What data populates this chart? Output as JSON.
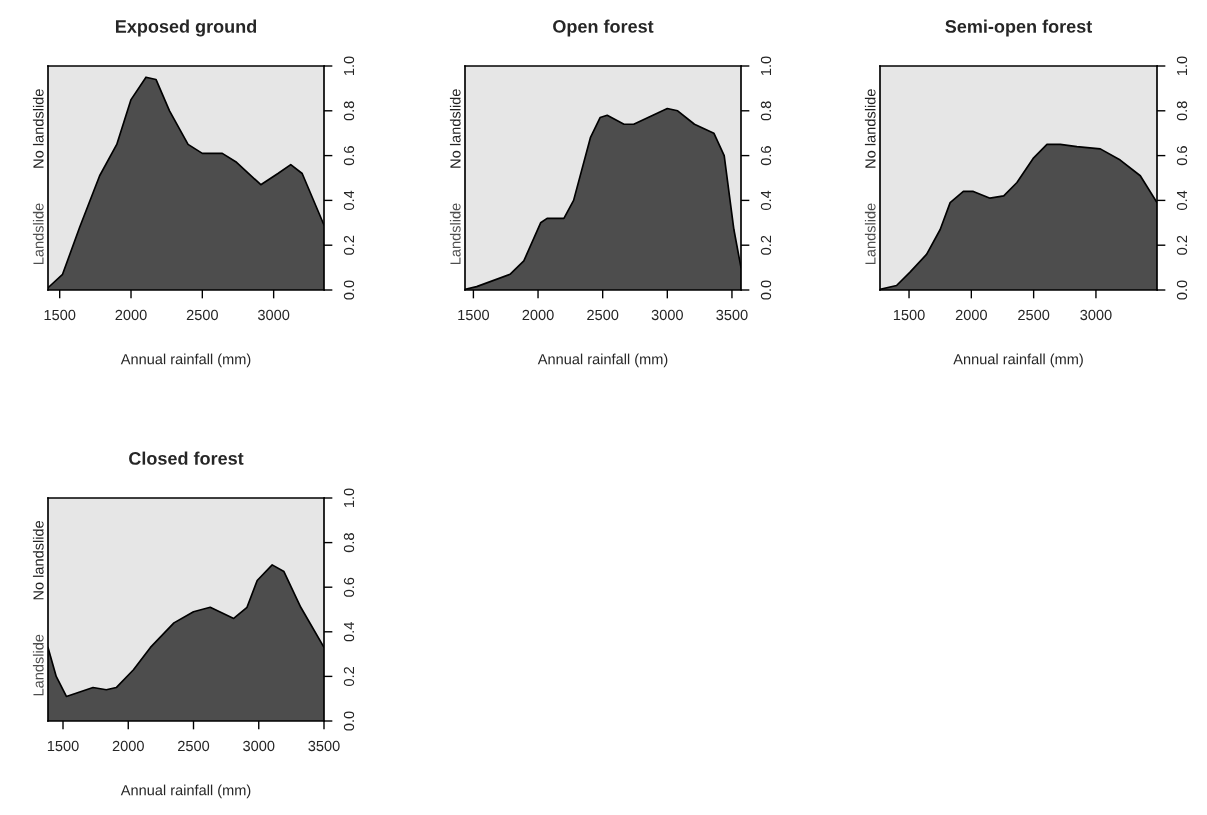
{
  "chart_data": [
    {
      "type": "area",
      "title": "Exposed ground",
      "xlabel": "Annual rainfall (mm)",
      "xlim": [
        1418,
        3353
      ],
      "xticks": [
        1500,
        2000,
        2500,
        3000
      ],
      "ylim": [
        0,
        1
      ],
      "yticks": [
        {
          "value": 0,
          "label": "0.0"
        },
        {
          "value": 0.2,
          "label": "0.2"
        },
        {
          "value": 0.4,
          "label": "0.4"
        },
        {
          "value": 0.6,
          "label": "0.6"
        },
        {
          "value": 0.8,
          "label": "0.8"
        },
        {
          "value": 1,
          "label": "1.0"
        }
      ],
      "bands": [
        {
          "axis": "y",
          "from": 0,
          "to": 1,
          "label": "No landslide",
          "color": "#e6e6e6"
        }
      ],
      "x": [
        1418,
        1520,
        1640,
        1780,
        1900,
        2000,
        2105,
        2175,
        2270,
        2400,
        2500,
        2640,
        2740,
        2910,
        3030,
        3120,
        3200,
        3353
      ],
      "series": [
        {
          "name": "Landslide",
          "color": "#4d4d4d",
          "values": [
            0.01,
            0.07,
            0.28,
            0.51,
            0.65,
            0.85,
            0.95,
            0.94,
            0.8,
            0.65,
            0.61,
            0.61,
            0.57,
            0.47,
            0.52,
            0.56,
            0.52,
            0.29
          ]
        }
      ]
    },
    {
      "type": "area",
      "title": "Open forest",
      "xlabel": "Annual rainfall (mm)",
      "xlim": [
        1435,
        3570
      ],
      "xticks": [
        1500,
        2000,
        2500,
        3000,
        3500
      ],
      "ylim": [
        0,
        1
      ],
      "yticks": [
        {
          "value": 0,
          "label": "0.0"
        },
        {
          "value": 0.2,
          "label": "0.2"
        },
        {
          "value": 0.4,
          "label": "0.4"
        },
        {
          "value": 0.6,
          "label": "0.6"
        },
        {
          "value": 0.8,
          "label": "0.8"
        },
        {
          "value": 1,
          "label": "1.0"
        }
      ],
      "bands": [
        {
          "axis": "y",
          "from": 0,
          "to": 1,
          "label": "No landslide",
          "color": "#e6e6e6"
        }
      ],
      "x": [
        1435,
        1525,
        1783,
        1890,
        2020,
        2070,
        2200,
        2275,
        2405,
        2480,
        2535,
        2665,
        2740,
        3000,
        3080,
        3210,
        3360,
        3440,
        3515,
        3570
      ],
      "series": [
        {
          "name": "Landslide",
          "color": "#4d4d4d",
          "values": [
            0.003,
            0.015,
            0.07,
            0.13,
            0.3,
            0.32,
            0.32,
            0.4,
            0.68,
            0.77,
            0.78,
            0.74,
            0.74,
            0.81,
            0.8,
            0.74,
            0.7,
            0.6,
            0.27,
            0.1
          ]
        }
      ]
    },
    {
      "type": "area",
      "title": "Semi-open forest",
      "xlabel": "Annual rainfall (mm)",
      "xlim": [
        1267,
        3490
      ],
      "xticks": [
        1500,
        2000,
        2500,
        3000
      ],
      "ylim": [
        0,
        1
      ],
      "yticks": [
        {
          "value": 0,
          "label": "0.0"
        },
        {
          "value": 0.2,
          "label": "0.2"
        },
        {
          "value": 0.4,
          "label": "0.4"
        },
        {
          "value": 0.6,
          "label": "0.6"
        },
        {
          "value": 0.8,
          "label": "0.8"
        },
        {
          "value": 1,
          "label": "1.0"
        }
      ],
      "bands": [
        {
          "axis": "y",
          "from": 0,
          "to": 1,
          "label": "No landslide",
          "color": "#e6e6e6"
        }
      ],
      "x": [
        1267,
        1400,
        1508,
        1642,
        1750,
        1830,
        1936,
        2016,
        2150,
        2260,
        2366,
        2500,
        2607,
        2714,
        2847,
        3035,
        3195,
        3356,
        3490
      ],
      "series": [
        {
          "name": "Landslide",
          "color": "#4d4d4d",
          "values": [
            0.003,
            0.02,
            0.08,
            0.16,
            0.27,
            0.39,
            0.44,
            0.44,
            0.41,
            0.42,
            0.48,
            0.59,
            0.65,
            0.65,
            0.64,
            0.63,
            0.58,
            0.51,
            0.39
          ]
        }
      ]
    },
    {
      "type": "area",
      "title": "Closed forest",
      "xlabel": "Annual rainfall (mm)",
      "xlim": [
        1385,
        3500
      ],
      "xticks": [
        1500,
        2000,
        2500,
        3000,
        3500
      ],
      "ylim": [
        0,
        1
      ],
      "yticks": [
        {
          "value": 0,
          "label": "0.0"
        },
        {
          "value": 0.2,
          "label": "0.2"
        },
        {
          "value": 0.4,
          "label": "0.4"
        },
        {
          "value": 0.6,
          "label": "0.6"
        },
        {
          "value": 0.8,
          "label": "0.8"
        },
        {
          "value": 1,
          "label": "1.0"
        }
      ],
      "bands": [
        {
          "axis": "y",
          "from": 0,
          "to": 1,
          "label": "No landslide",
          "color": "#e6e6e6"
        }
      ],
      "x": [
        1385,
        1448,
        1526,
        1628,
        1730,
        1832,
        1908,
        2040,
        2170,
        2350,
        2500,
        2628,
        2808,
        2910,
        2988,
        3103,
        3193,
        3322,
        3500
      ],
      "series": [
        {
          "name": "Landslide",
          "color": "#4d4d4d",
          "values": [
            0.33,
            0.2,
            0.11,
            0.13,
            0.15,
            0.14,
            0.15,
            0.23,
            0.33,
            0.44,
            0.49,
            0.51,
            0.46,
            0.51,
            0.63,
            0.7,
            0.67,
            0.51,
            0.33
          ]
        }
      ]
    }
  ]
}
